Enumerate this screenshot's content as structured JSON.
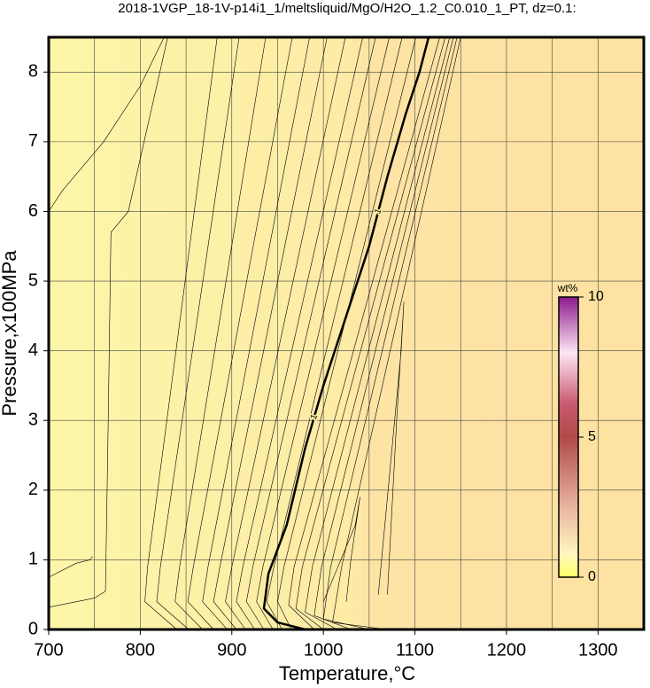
{
  "chart_data": {
    "type": "contour",
    "title": "2018-1VGP_18-1V-p14i1_1/meltsliquid/MgO/H2O_1.2_C0.010_1_PT, dz=0.1:",
    "xlabel": "Temperature,°C",
    "ylabel": "Pressure,x100MPa",
    "xlim": [
      700,
      1350
    ],
    "ylim": [
      0,
      8.5
    ],
    "xticks": [
      700,
      800,
      900,
      1000,
      1100,
      1200,
      1300
    ],
    "xminor": [
      750,
      850,
      950,
      1050,
      1150,
      1250
    ],
    "yticks": [
      0,
      1,
      2,
      3,
      4,
      5,
      6,
      7,
      8
    ],
    "grid": true,
    "contours": [
      {
        "x": [
          700,
          715,
          760,
          800,
          826
        ],
        "y": [
          6.0,
          6.3,
          7.0,
          7.8,
          8.5
        ]
      },
      {
        "x": [
          700,
          750,
          762,
          765,
          768,
          787,
          830
        ],
        "y": [
          0.32,
          0.45,
          0.55,
          3.0,
          5.7,
          6.0,
          8.5
        ]
      },
      {
        "x": [
          700,
          730,
          745,
          748
        ],
        "y": [
          0.75,
          0.95,
          1.0,
          1.05
        ]
      },
      {
        "x": [
          840,
          805,
          808,
          884
        ],
        "y": [
          0,
          0.4,
          0.9,
          8.5
        ]
      },
      {
        "x": [
          853,
          818,
          822,
          908
        ],
        "y": [
          0,
          0.4,
          0.9,
          8.5
        ]
      },
      {
        "x": [
          868,
          838,
          843,
          937
        ],
        "y": [
          0,
          0.4,
          0.9,
          8.5
        ]
      },
      {
        "x": [
          880,
          852,
          858,
          966
        ],
        "y": [
          0,
          0.4,
          0.9,
          8.5
        ]
      },
      {
        "x": [
          895,
          868,
          874,
          985
        ],
        "y": [
          0,
          0.4,
          0.9,
          8.5
        ]
      },
      {
        "x": [
          905,
          880,
          887,
          1004
        ],
        "y": [
          0,
          0.4,
          0.9,
          8.5
        ]
      },
      {
        "x": [
          915,
          893,
          900,
          1024
        ],
        "y": [
          0,
          0.4,
          0.9,
          8.5
        ]
      },
      {
        "x": [
          925,
          905,
          912,
          1043
        ],
        "y": [
          0,
          0.4,
          0.9,
          8.5
        ]
      },
      {
        "x": [
          935,
          916,
          923,
          1057
        ],
        "y": [
          0,
          0.4,
          0.9,
          8.5
        ]
      },
      {
        "x": [
          945,
          927,
          934,
          1072
        ],
        "y": [
          0,
          0.4,
          0.9,
          8.5
        ]
      },
      {
        "x": [
          955,
          938,
          946,
          1086
        ],
        "y": [
          0,
          0.4,
          0.9,
          8.5
        ]
      },
      {
        "x": [
          965,
          950,
          957,
          1101
        ],
        "y": [
          0,
          0.4,
          0.9,
          8.5
        ]
      },
      {
        "level": 1,
        "bold": true,
        "x": [
          980,
          950,
          935,
          940,
          960,
          980,
          1000,
          1025,
          1050,
          1070,
          1090,
          1105,
          1115
        ],
        "y": [
          0,
          0.1,
          0.3,
          0.8,
          1.5,
          2.6,
          3.5,
          4.5,
          5.5,
          6.5,
          7.4,
          8.0,
          8.5
        ]
      },
      {
        "x": [
          990,
          962,
          968,
          1127
        ],
        "y": [
          0,
          0.35,
          0.9,
          8.5
        ]
      },
      {
        "x": [
          1000,
          970,
          977,
          1133
        ],
        "y": [
          0,
          0.3,
          0.9,
          8.5
        ]
      },
      {
        "x": [
          1015,
          980,
          988,
          1138
        ],
        "y": [
          0,
          0.25,
          0.9,
          8.5
        ]
      },
      {
        "x": [
          1030,
          990,
          998,
          1142
        ],
        "y": [
          0,
          0.2,
          0.9,
          8.5
        ]
      },
      {
        "x": [
          1050,
          1000,
          1008,
          1146
        ],
        "y": [
          0,
          0.15,
          0.9,
          8.5
        ]
      },
      {
        "x": [
          1070,
          1010,
          1020,
          1150
        ],
        "y": [
          0,
          0.1,
          0.9,
          8.5
        ]
      },
      {
        "x": [
          1000,
          1035,
          1040,
          1030,
          1025
        ],
        "y": [
          0.4,
          1.5,
          1.9,
          1.0,
          0.4
        ]
      },
      {
        "x": [
          1060,
          1085,
          1088,
          1080,
          1070
        ],
        "y": [
          0.5,
          4.0,
          4.7,
          3.0,
          0.5
        ]
      }
    ],
    "colorbar": {
      "label": "wt%",
      "lim": [
        0,
        10
      ],
      "ticks": [
        0,
        5,
        10
      ]
    }
  }
}
